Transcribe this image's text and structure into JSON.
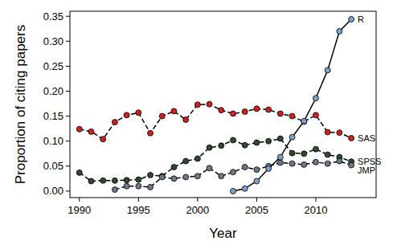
{
  "chart_data": {
    "type": "line",
    "x_label": "Year",
    "y_label": "Proportion of citing papers",
    "x": [
      1990,
      1991,
      1992,
      1993,
      1994,
      1995,
      1996,
      1997,
      1998,
      1999,
      2000,
      2001,
      2002,
      2003,
      2004,
      2005,
      2006,
      2007,
      2008,
      2009,
      2010,
      2011,
      2012,
      2013
    ],
    "series": [
      {
        "name": "SAS",
        "color": "#cc2222",
        "marker": "circle",
        "line_style": "dashed",
        "values": [
          0.124,
          0.119,
          0.104,
          0.138,
          0.152,
          0.157,
          0.116,
          0.15,
          0.16,
          0.143,
          0.173,
          0.174,
          0.162,
          0.155,
          0.159,
          0.165,
          0.163,
          0.155,
          0.15,
          0.139,
          0.152,
          0.118,
          0.117,
          0.106
        ]
      },
      {
        "name": "SPSS",
        "color": "#2f4a2f",
        "marker": "circle",
        "line_style": "dashed",
        "values": [
          0.037,
          0.02,
          0.021,
          0.021,
          0.022,
          0.023,
          0.032,
          0.03,
          0.048,
          0.06,
          0.065,
          0.087,
          0.091,
          0.102,
          0.092,
          0.097,
          0.1,
          0.105,
          0.076,
          0.075,
          0.084,
          0.073,
          0.068,
          0.059
        ]
      },
      {
        "name": "JMP",
        "color": "#6b7886",
        "marker": "circle",
        "line_style": "dashed",
        "values": [
          null,
          null,
          null,
          0.003,
          0.01,
          0.01,
          0.008,
          0.028,
          0.025,
          0.028,
          0.03,
          0.046,
          0.03,
          0.038,
          0.048,
          0.043,
          0.05,
          0.057,
          0.055,
          0.053,
          0.058,
          0.055,
          0.06,
          0.052
        ]
      },
      {
        "name": "R",
        "color": "#7f9fc6",
        "marker": "circle",
        "line_style": "solid",
        "values": [
          null,
          null,
          null,
          null,
          null,
          null,
          null,
          null,
          null,
          null,
          null,
          null,
          null,
          0.0,
          0.005,
          0.02,
          0.045,
          0.068,
          0.108,
          0.14,
          0.186,
          0.242,
          0.32,
          0.344
        ]
      }
    ],
    "xlim": [
      1989.2,
      2015.1
    ],
    "xticks": [
      1990,
      1995,
      2000,
      2005,
      2010
    ],
    "ylim": [
      -0.013,
      0.36
    ],
    "yticks": [
      {
        "value": 0,
        "label": "0.00"
      },
      0.05,
      {
        "value": 0.1,
        "label": "0.10"
      },
      0.15,
      {
        "value": 0.2,
        "label": "0.20"
      },
      0.25,
      {
        "value": 0.3,
        "label": "0.30"
      },
      0.35
    ],
    "grid": false
  }
}
